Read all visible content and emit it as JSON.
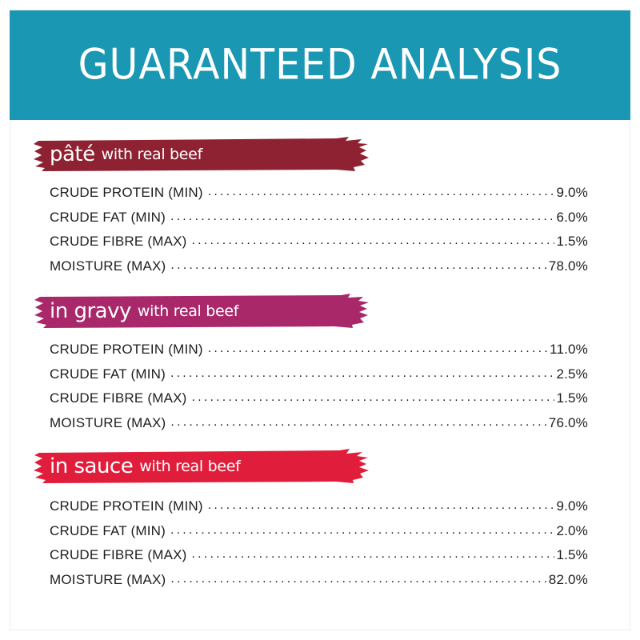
{
  "header": {
    "title": "GUARANTEED ANALYSIS",
    "background": "#1a97b3"
  },
  "sections": [
    {
      "name": "pâté",
      "sub": "with real beef",
      "color": "#8e2232",
      "rows": [
        {
          "label": "CRUDE PROTEIN (MIN)",
          "value": "9.0%"
        },
        {
          "label": "CRUDE FAT (MIN)",
          "value": "6.0%"
        },
        {
          "label": "CRUDE FIBRE (MAX)",
          "value": "1.5%"
        },
        {
          "label": "MOISTURE (MAX)",
          "value": "78.0%"
        }
      ]
    },
    {
      "name": "in gravy",
      "sub": "with real beef",
      "color": "#a8286a",
      "rows": [
        {
          "label": "CRUDE PROTEIN (MIN)",
          "value": "11.0%"
        },
        {
          "label": "CRUDE FAT (MIN)",
          "value": "2.5%"
        },
        {
          "label": "CRUDE FIBRE (MAX)",
          "value": "1.5%"
        },
        {
          "label": "MOISTURE (MAX)",
          "value": "76.0%"
        }
      ]
    },
    {
      "name": "in sauce",
      "sub": "with real beef",
      "color": "#e11d3c",
      "rows": [
        {
          "label": "CRUDE PROTEIN (MIN)",
          "value": "9.0%"
        },
        {
          "label": "CRUDE FAT (MIN)",
          "value": "2.0%"
        },
        {
          "label": "CRUDE FIBRE (MAX)",
          "value": "1.5%"
        },
        {
          "label": "MOISTURE (MAX)",
          "value": "82.0%"
        }
      ]
    }
  ]
}
